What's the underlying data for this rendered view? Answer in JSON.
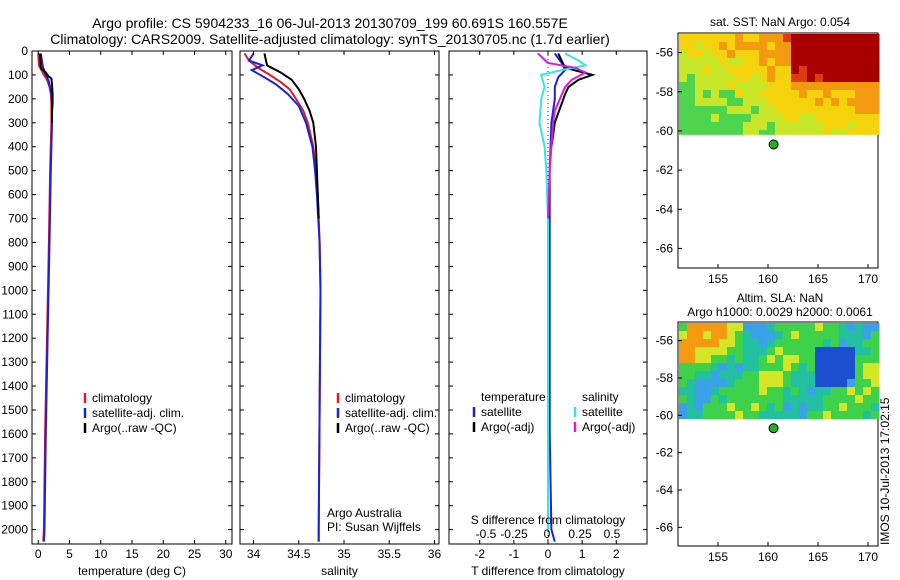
{
  "header": {
    "line1": "Argo profile: CS 5904233_16 06-Jul-2013 20130709_199 60.691S 160.557E",
    "line2": "Climatology: CARS2009. Satellite-adjusted climatology: synTS_20130705.nc (1.7d earlier)"
  },
  "colors": {
    "climatology": "#d81e1e",
    "satellite_adj": "#1f1fd8",
    "argo": "#000000",
    "salinity_satellite": "#33e6e6",
    "salinity_argo": "#d81ed8"
  },
  "chart_data": [
    {
      "type": "line",
      "panel": "temperature",
      "xlabel": "temperature (deg C)",
      "ylabel": "",
      "xlim": [
        -1,
        31
      ],
      "ylim": [
        2060,
        0
      ],
      "x_ticks": [
        "0",
        "5",
        "10",
        "15",
        "20",
        "25",
        "30"
      ],
      "y_ticks": [
        "0",
        "100",
        "200",
        "300",
        "400",
        "500",
        "600",
        "700",
        "800",
        "900",
        "1000",
        "1100",
        "1200",
        "1300",
        "1400",
        "1500",
        "1600",
        "1700",
        "1800",
        "1900",
        "2000"
      ],
      "legend": [
        "climatology",
        "satellite-adj. clim.",
        "Argo(..raw -QC)"
      ],
      "series": [
        {
          "name": "climatology",
          "depth": [
            10,
            60,
            80,
            100,
            120,
            150,
            180,
            220,
            300,
            500,
            800,
            1200,
            1600,
            2000,
            2050
          ],
          "values": [
            0.0,
            0.1,
            0.5,
            0.9,
            1.4,
            1.8,
            2.0,
            2.1,
            2.1,
            1.9,
            1.7,
            1.4,
            1.1,
            0.9,
            0.8
          ]
        },
        {
          "name": "satellite-adj. clim.",
          "depth": [
            10,
            60,
            80,
            100,
            120,
            150,
            180,
            220,
            300,
            500,
            800,
            1200,
            1600,
            2000,
            2050
          ],
          "values": [
            0.4,
            0.7,
            0.9,
            1.2,
            1.6,
            1.9,
            2.1,
            2.2,
            2.2,
            2.0,
            1.8,
            1.5,
            1.2,
            1.0,
            0.9
          ]
        },
        {
          "name": "Argo(..raw -QC)",
          "depth": [
            10,
            70,
            90,
            105,
            115,
            140,
            180,
            220,
            260,
            300
          ],
          "values": [
            0.3,
            0.4,
            1.2,
            1.6,
            2.1,
            2.2,
            2.3,
            2.3,
            2.2,
            2.2
          ]
        }
      ]
    },
    {
      "type": "line",
      "panel": "salinity",
      "xlabel": "salinity",
      "ylabel": "",
      "xlim": [
        33.85,
        36.05
      ],
      "ylim": [
        2060,
        0
      ],
      "x_ticks": [
        "34",
        "34.5",
        "35",
        "35.5",
        "36"
      ],
      "legend": [
        "climatology",
        "satellite-adj. clim.",
        "Argo(..raw -QC)"
      ],
      "annotations": [
        "Argo Australia",
        "PI: Susan Wijffels"
      ],
      "series": [
        {
          "name": "climatology",
          "depth": [
            10,
            40,
            70,
            100,
            130,
            160,
            200,
            250,
            300,
            400,
            500,
            600,
            800,
            1000,
            1500,
            2000,
            2050
          ],
          "values": [
            33.9,
            33.95,
            34.05,
            34.18,
            34.3,
            34.4,
            34.47,
            34.55,
            34.6,
            34.66,
            34.69,
            34.71,
            34.73,
            34.74,
            34.73,
            34.72,
            34.72
          ]
        },
        {
          "name": "satellite-adj. clim.",
          "depth": [
            10,
            40,
            60,
            80,
            110,
            140,
            180,
            230,
            300,
            400,
            500,
            600,
            800,
            1000,
            1500,
            2000,
            2050
          ],
          "values": [
            34.0,
            33.95,
            34.1,
            33.98,
            34.12,
            34.25,
            34.38,
            34.5,
            34.58,
            34.65,
            34.68,
            34.7,
            34.73,
            34.74,
            34.73,
            34.72,
            34.72
          ]
        },
        {
          "name": "Argo(..raw -QC)",
          "depth": [
            10,
            60,
            90,
            120,
            160,
            200,
            250,
            300,
            400,
            500,
            600,
            700
          ],
          "values": [
            34.12,
            34.15,
            34.3,
            34.42,
            34.5,
            34.56,
            34.62,
            34.66,
            34.69,
            34.7,
            34.71,
            34.72
          ]
        }
      ]
    },
    {
      "type": "line",
      "panel": "difference",
      "xlabel": "T difference from climatology",
      "xlabel_top": "S difference from climatology",
      "xlim": [
        -2.9,
        2.9
      ],
      "ylim": [
        2060,
        0
      ],
      "x_ticks": [
        "-2",
        "-1",
        "0",
        "1",
        "2"
      ],
      "x_ticks_top": [
        "-0.5",
        "-0.25",
        "0",
        "0.25",
        "0.5"
      ],
      "legend_temperature_heading": "temperature",
      "legend_salinity_heading": "salinity",
      "legend": [
        "satellite",
        "Argo(-adj)",
        "satellite",
        "Argo(-adj)"
      ],
      "series": [
        {
          "name": "temperature satellite",
          "depth": [
            10,
            50,
            80,
            110,
            150,
            200,
            300,
            500,
            800,
            1200,
            1600,
            2000,
            2050
          ],
          "values": [
            0.2,
            0.4,
            0.5,
            0.3,
            0.2,
            0.2,
            0.1,
            0.05,
            0.05,
            0.05,
            0.05,
            0.1,
            0.2
          ]
        },
        {
          "name": "temperature Argo(-adj)",
          "depth": [
            10,
            70,
            100,
            120,
            150,
            180,
            220,
            260,
            300,
            350,
            400
          ],
          "values": [
            0.3,
            0.5,
            1.3,
            0.9,
            0.6,
            0.5,
            0.4,
            0.3,
            0.2,
            0.15,
            0.1
          ]
        },
        {
          "name": "salinity satellite",
          "depth": [
            10,
            40,
            60,
            80,
            100,
            150,
            200,
            300,
            400,
            500,
            700,
            1000,
            1500,
            2000
          ],
          "values": [
            0.5,
            0.9,
            1.1,
            0.4,
            -0.2,
            -0.1,
            -0.2,
            -0.25,
            -0.1,
            -0.05,
            0.0,
            0.0,
            0.0,
            0.0
          ]
        },
        {
          "name": "salinity Argo(-adj)",
          "depth": [
            10,
            50,
            70,
            90,
            120,
            150,
            200,
            250,
            300,
            400,
            500,
            600,
            700
          ],
          "values": [
            -0.3,
            0.0,
            0.8,
            1.1,
            0.7,
            0.5,
            0.35,
            0.2,
            0.15,
            0.1,
            0.05,
            0.02,
            0.0
          ]
        }
      ]
    },
    {
      "type": "heatmap",
      "panel": "sst_map",
      "title": "sat. SST: NaN Argo: 0.054",
      "x_ticks": [
        "155",
        "160",
        "165",
        "170"
      ],
      "y_ticks": [
        "-56",
        "-58",
        "-60",
        "-62",
        "-64",
        "-66"
      ],
      "xlim": [
        151,
        171
      ],
      "ylim": [
        -67,
        -55
      ],
      "marker": {
        "lon": 160.557,
        "lat": -60.691
      }
    },
    {
      "type": "heatmap",
      "panel": "sla_map",
      "title": "Altim. SLA: NaN",
      "subtitle": "Argo h1000: 0.0029 h2000: 0.0061",
      "x_ticks": [
        "155",
        "160",
        "165",
        "170"
      ],
      "y_ticks": [
        "-56",
        "-58",
        "-60",
        "-62",
        "-64",
        "-66"
      ],
      "xlim": [
        151,
        171
      ],
      "ylim": [
        -67,
        -55
      ],
      "marker": {
        "lon": 160.557,
        "lat": -60.691
      }
    }
  ],
  "footer": {
    "stamp": "IMOS 10-Jul-2013 17:02:15"
  }
}
